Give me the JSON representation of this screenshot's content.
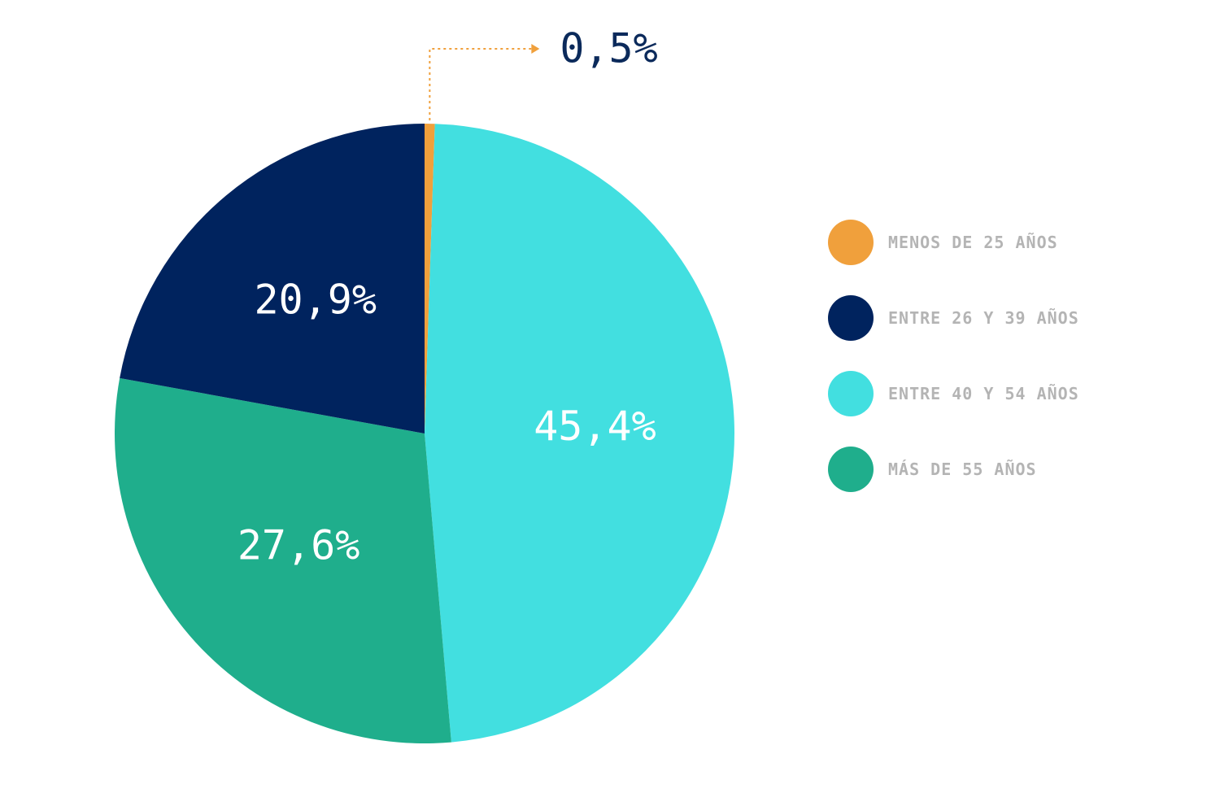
{
  "chart_data": {
    "type": "pie",
    "slices": [
      {
        "label": "MENOS DE 25 AÑOS",
        "value": 0.5,
        "display": "0,5%",
        "color": "#f0a03c"
      },
      {
        "label": "ENTRE 40 Y 54 AÑOS",
        "value": 45.4,
        "display": "45,4%",
        "color": "#42dfe0"
      },
      {
        "label": "MÁS DE 55 AÑOS",
        "value": 27.6,
        "display": "27,6%",
        "color": "#1fae8c"
      },
      {
        "label": "ENTRE 26 Y 39 AÑOS",
        "value": 20.9,
        "display": "20,9%",
        "color": "#00235e"
      }
    ],
    "legend_position": "right"
  },
  "legend": {
    "items": [
      {
        "label": "MENOS DE 25 AÑOS",
        "color": "#f0a03c"
      },
      {
        "label": "ENTRE 26 Y 39 AÑOS",
        "color": "#00235e"
      },
      {
        "label": "ENTRE 40 Y 54 AÑOS",
        "color": "#42dfe0"
      },
      {
        "label": "MÁS DE 55 AÑOS",
        "color": "#1fae8c"
      }
    ]
  },
  "colors": {
    "callout_line": "#f0a03c",
    "callout_text": "#0b2a5b",
    "legend_text": "#b4b4b4"
  }
}
